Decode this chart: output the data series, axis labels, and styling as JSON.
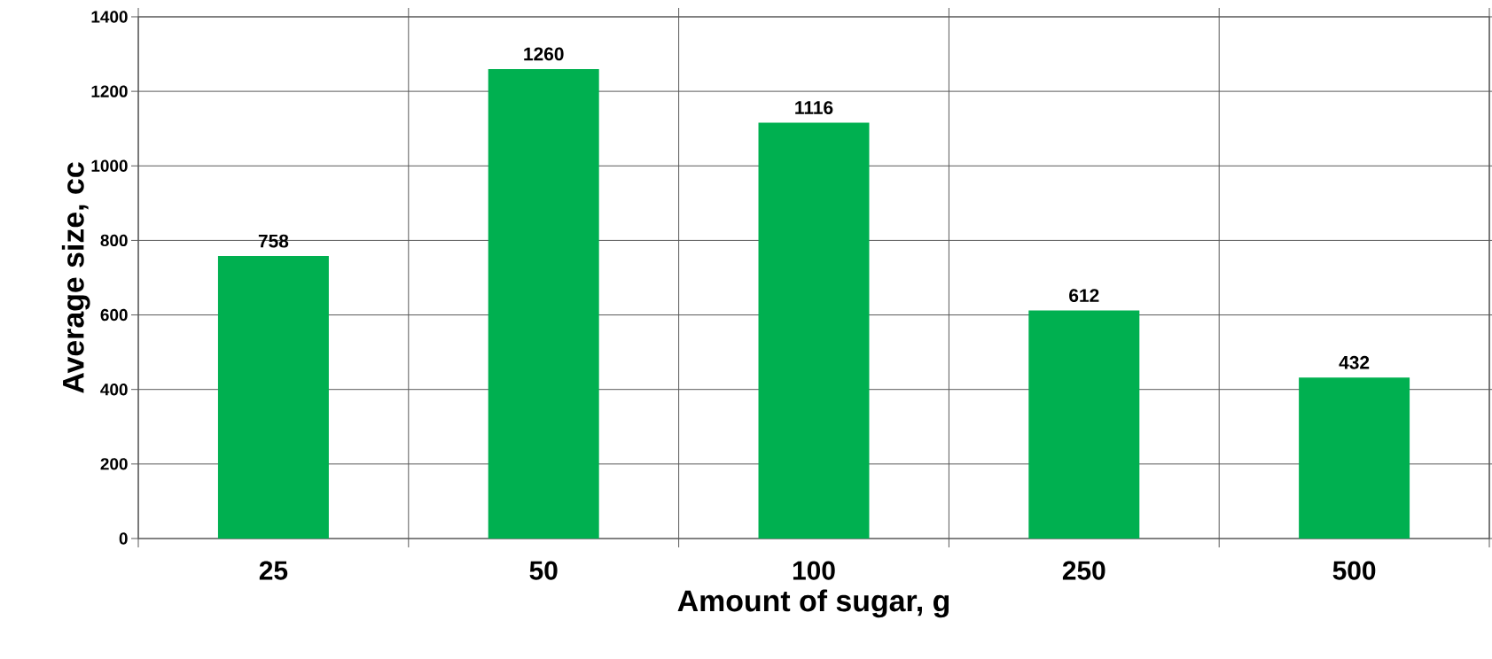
{
  "chart_data": {
    "type": "bar",
    "xlabel": "Amount of sugar, g",
    "ylabel": "Average size, cc",
    "categories": [
      "25",
      "50",
      "100",
      "250",
      "500"
    ],
    "values": [
      758,
      1260,
      1116,
      612,
      432
    ],
    "color": "#00b050",
    "ylim": [
      0,
      1400
    ],
    "yticks": [
      0,
      200,
      400,
      600,
      800,
      1000,
      1200,
      1400
    ],
    "grid": true,
    "data_labels": true
  }
}
